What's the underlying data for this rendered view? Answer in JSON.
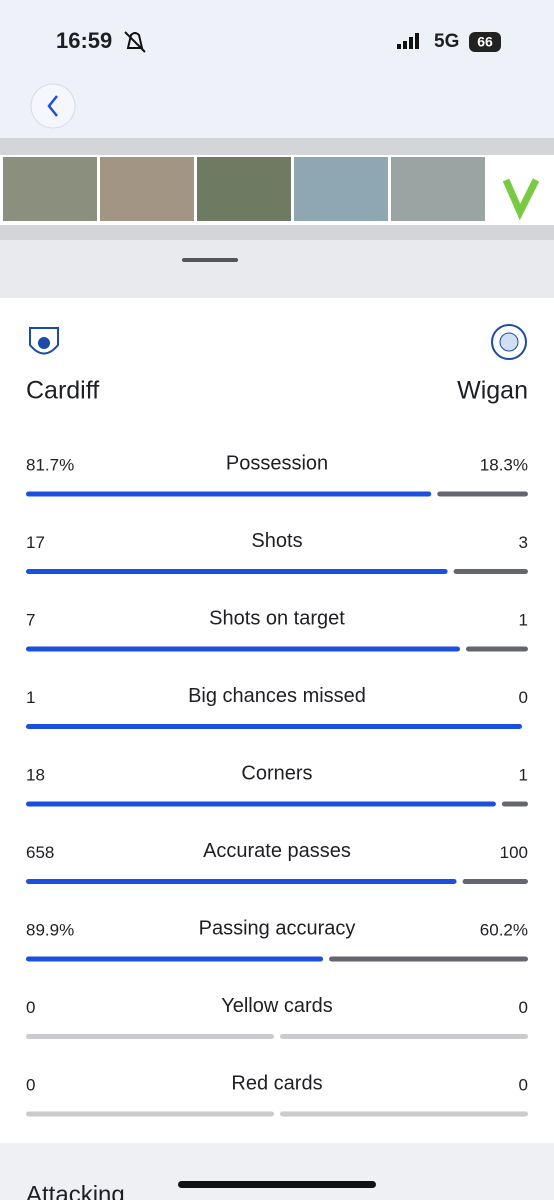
{
  "status": {
    "time": "16:59",
    "network": "5G",
    "battery": "66"
  },
  "teams": {
    "home": "Cardiff",
    "away": "Wigan"
  },
  "stats": [
    {
      "label": "Possession",
      "home": {
        "value": 81.7,
        "label": "81.7%"
      },
      "away": {
        "value": 18.3,
        "label": "18.3%"
      }
    },
    {
      "label": "Shots",
      "home": 17,
      "away": 3
    },
    {
      "label": "Shots on target",
      "home": 7,
      "away": 1
    },
    {
      "label": "Big chances missed",
      "home": 1,
      "away": 0
    },
    {
      "label": "Corners",
      "home": 18,
      "away": 1
    },
    {
      "label": "Accurate passes",
      "home": 658,
      "away": 100
    },
    {
      "label": "Passing accuracy",
      "home": {
        "value": 89.9,
        "label": "89.9%"
      },
      "away": {
        "value": 60.2,
        "label": "60.2%"
      }
    },
    {
      "label": "Yellow cards",
      "home": 0,
      "away": 0
    },
    {
      "label": "Red cards",
      "home": 0,
      "away": 0
    }
  ],
  "next_section": "Attacking"
}
